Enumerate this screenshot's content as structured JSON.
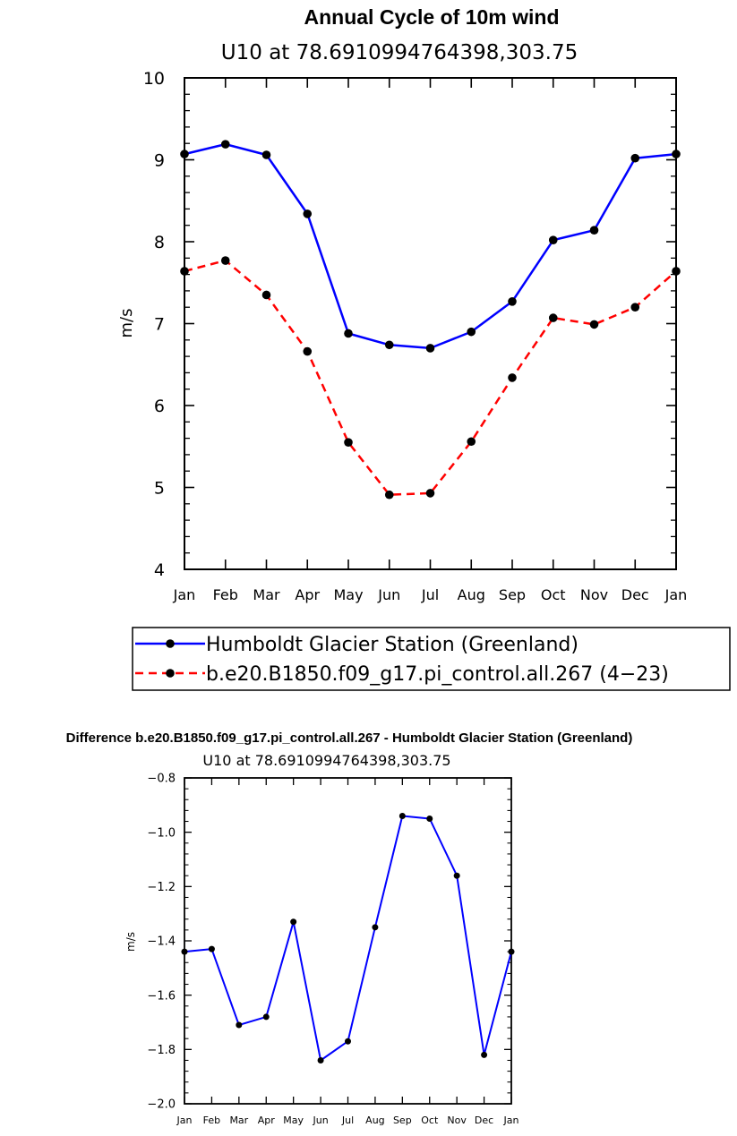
{
  "chart_data": [
    {
      "type": "line",
      "title": "Annual Cycle of 10m wind",
      "subtitle": "U10 at 78.6910994764398,303.75",
      "xlabel": "",
      "ylabel": "m/s",
      "categories": [
        "Jan",
        "Feb",
        "Mar",
        "Apr",
        "May",
        "Jun",
        "Jul",
        "Aug",
        "Sep",
        "Oct",
        "Nov",
        "Dec",
        "Jan"
      ],
      "ylim": [
        4,
        10
      ],
      "yticks": [
        "4",
        "5",
        "6",
        "7",
        "8",
        "9",
        "10"
      ],
      "grid": false,
      "legend_position": "bottom",
      "series": [
        {
          "name": "Humboldt Glacier Station (Greenland)",
          "color": "#0000ff",
          "dash": "solid",
          "values": [
            9.07,
            9.19,
            9.06,
            8.34,
            6.88,
            6.74,
            6.7,
            6.9,
            7.27,
            8.02,
            8.14,
            9.02,
            9.07
          ]
        },
        {
          "name": "b.e20.B1850.f09_g17.pi_control.all.267 (4−23)",
          "color": "#ff0000",
          "dash": "dashed",
          "values": [
            7.64,
            7.77,
            7.35,
            6.66,
            5.55,
            4.91,
            4.93,
            5.56,
            6.34,
            7.07,
            6.99,
            7.2,
            7.64
          ]
        }
      ]
    },
    {
      "type": "line",
      "title": "Difference b.e20.B1850.f09_g17.pi_control.all.267 - Humboldt Glacier Station (Greenland)",
      "subtitle": "U10 at 78.6910994764398,303.75",
      "xlabel": "",
      "ylabel": "m/s",
      "categories": [
        "Jan",
        "Feb",
        "Mar",
        "Apr",
        "May",
        "Jun",
        "Jul",
        "Aug",
        "Sep",
        "Oct",
        "Nov",
        "Dec",
        "Jan"
      ],
      "ylim": [
        -2.0,
        -0.8
      ],
      "yticks": [
        "−2.0",
        "−1.8",
        "−1.6",
        "−1.4",
        "−1.2",
        "−1.0",
        "−0.8"
      ],
      "grid": false,
      "series": [
        {
          "color": "#0000ff",
          "dash": "solid",
          "values": [
            -1.44,
            -1.43,
            -1.71,
            -1.68,
            -1.33,
            -1.84,
            -1.77,
            -1.35,
            -0.94,
            -0.95,
            -1.16,
            -1.82,
            -1.44
          ]
        }
      ]
    }
  ]
}
